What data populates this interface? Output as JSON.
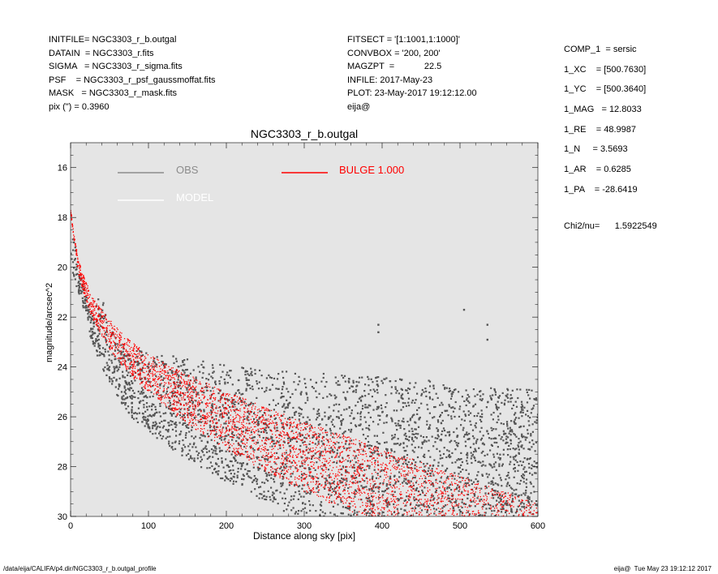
{
  "header_left": [
    {
      "key": "INITFILE=",
      "value": "NGC3303_r_b.outgal"
    },
    {
      "key": "DATAIN  =",
      "value": "NGC3303_r.fits"
    },
    {
      "key": "SIGMA   =",
      "value": "NGC3303_r_sigma.fits"
    },
    {
      "key": "PSF    =",
      "value": "NGC3303_r_psf_gaussmoffat.fits"
    },
    {
      "key": "MASK   =",
      "value": "NGC3303_r_mask.fits"
    },
    {
      "key": "pix (\") =",
      "value": "0.3960"
    }
  ],
  "header_mid": [
    "FITSECT = '[1:1001,1:1000]'",
    "CONVBOX = '200, 200'",
    "MAGZPT  =            22.5",
    "INFILE: 2017-May-23",
    "PLOT: 23-May-2017 19:12:12.00",
    "eija@"
  ],
  "params": [
    "COMP_1  = sersic",
    "1_XC    = [500.7630]",
    "1_YC    = [500.3640]",
    "1_MAG   = 12.8033",
    "1_RE    = 48.9987",
    "1_N     = 3.5693",
    "1_AR    = 0.6285",
    "1_PA    = -28.6419"
  ],
  "chi2": {
    "label": "Chi2/nu=",
    "value": "1.5922549"
  },
  "footer": {
    "path": "/data/eija/CALIFA/p4.dir/NGC3303_r_b.outgal_profile",
    "stamp": "eija@  Tue May 23 19:12:12 2017"
  },
  "colors": {
    "panel": "#e5e5e5",
    "obs": "#555555",
    "model": "#ff0000",
    "obs_legend": "#8c8c8c",
    "model_legend": "#ffffff"
  },
  "chart_data": {
    "type": "scatter",
    "title": "NGC3303_r_b.outgal",
    "xlabel": "Distance along sky [pix]",
    "ylabel": "magnitude/arcsec^2",
    "xlim": [
      0,
      600
    ],
    "ylim": [
      30,
      15
    ],
    "y_inverted": true,
    "xticks": [
      0,
      100,
      200,
      300,
      400,
      500,
      600
    ],
    "yticks": [
      16,
      18,
      20,
      22,
      24,
      26,
      28,
      30
    ],
    "grid": false,
    "legend": [
      {
        "name": "OBS",
        "color": "#8c8c8c"
      },
      {
        "name": "MODEL",
        "color": "#ffffff"
      },
      {
        "name": "BULGE  1.000",
        "color": "#ff0000"
      }
    ],
    "series": [
      {
        "name": "OBS",
        "points": [
          [
            0,
            17.8
          ],
          [
            5,
            19.0
          ],
          [
            10,
            19.8
          ],
          [
            15,
            20.5
          ],
          [
            20,
            21.1
          ],
          [
            25,
            21.6
          ],
          [
            30,
            22.0
          ],
          [
            35,
            21.3
          ],
          [
            40,
            21.0
          ],
          [
            45,
            21.5
          ],
          [
            50,
            22.4
          ],
          [
            60,
            22.9
          ],
          [
            75,
            23.3
          ],
          [
            100,
            23.4
          ],
          [
            125,
            23.5
          ],
          [
            150,
            23.6
          ],
          [
            175,
            23.8
          ],
          [
            200,
            23.9
          ],
          [
            250,
            24.1
          ],
          [
            300,
            24.2
          ],
          [
            350,
            24.3
          ],
          [
            400,
            24.4
          ],
          [
            450,
            24.5
          ],
          [
            500,
            24.7
          ],
          [
            550,
            24.8
          ],
          [
            600,
            24.9
          ]
        ],
        "lower": [
          [
            10,
            21.0
          ],
          [
            20,
            22.3
          ],
          [
            30,
            23.2
          ],
          [
            40,
            24.0
          ],
          [
            50,
            24.6
          ],
          [
            60,
            25.2
          ],
          [
            75,
            26.0
          ],
          [
            100,
            26.6
          ],
          [
            125,
            27.2
          ],
          [
            150,
            27.7
          ],
          [
            175,
            28.2
          ],
          [
            200,
            28.6
          ],
          [
            225,
            29.0
          ],
          [
            250,
            29.4
          ],
          [
            275,
            29.8
          ],
          [
            290,
            30.0
          ]
        ],
        "outliers": [
          [
            395,
            22.3
          ],
          [
            395,
            22.6
          ],
          [
            505,
            21.7
          ],
          [
            535,
            22.3
          ],
          [
            535,
            22.9
          ]
        ]
      },
      {
        "name": "BULGE  1.000",
        "upper": [
          [
            0,
            17.7
          ],
          [
            10,
            19.7
          ],
          [
            20,
            20.6
          ],
          [
            30,
            21.3
          ],
          [
            50,
            22.1
          ],
          [
            75,
            22.9
          ],
          [
            100,
            23.5
          ],
          [
            150,
            24.3
          ],
          [
            200,
            25.0
          ],
          [
            250,
            25.6
          ],
          [
            300,
            26.2
          ],
          [
            350,
            26.7
          ],
          [
            400,
            27.3
          ],
          [
            450,
            27.8
          ],
          [
            500,
            28.4
          ],
          [
            550,
            28.9
          ],
          [
            600,
            29.5
          ]
        ],
        "lower": [
          [
            0,
            17.8
          ],
          [
            10,
            20.3
          ],
          [
            20,
            21.4
          ],
          [
            30,
            22.2
          ],
          [
            50,
            23.3
          ],
          [
            75,
            24.3
          ],
          [
            100,
            25.0
          ],
          [
            150,
            26.3
          ],
          [
            200,
            27.3
          ],
          [
            250,
            28.2
          ],
          [
            300,
            29.0
          ],
          [
            350,
            29.7
          ],
          [
            400,
            30.4
          ],
          [
            450,
            31.0
          ],
          [
            500,
            31.6
          ],
          [
            550,
            32.2
          ],
          [
            600,
            32.8
          ]
        ]
      }
    ]
  }
}
